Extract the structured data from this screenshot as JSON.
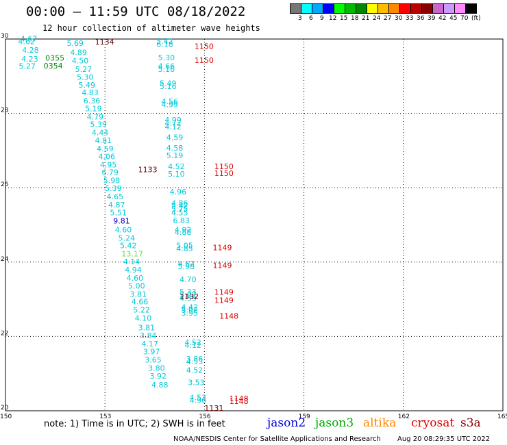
{
  "header": {
    "title": "00:00 — 11:59 UTC 08/18/2022",
    "subtitle": "12 hour collection of altimeter wave heights"
  },
  "color_scale": {
    "colors": [
      "#777777",
      "#00ffff",
      "#00aaff",
      "#0000ff",
      "#00ff00",
      "#00bb00",
      "#008800",
      "#ffff00",
      "#ffbb00",
      "#ff8800",
      "#ff0000",
      "#bb0000",
      "#880000",
      "#cc66cc",
      "#cc99ff",
      "#ff88ff",
      "#000000"
    ],
    "labels": [
      "3",
      "6",
      "9",
      "12",
      "15",
      "18",
      "21",
      "24",
      "27",
      "30",
      "33",
      "36",
      "39",
      "42",
      "45",
      "70",
      "(ft)"
    ]
  },
  "axes": {
    "lat_labels": [
      "30",
      "28",
      "26",
      "24",
      "22",
      "20"
    ],
    "lon_labels": [
      "150",
      "153",
      "156",
      "159",
      "162",
      "165"
    ]
  },
  "observations": {
    "jason3_cyan": [
      {
        "lat": 29.94,
        "lon": 150.45,
        "t": "4.67"
      },
      {
        "lat": 29.86,
        "lon": 150.38,
        "t": "4.62"
      },
      {
        "lat": 29.82,
        "lon": 151.85,
        "t": "5.69"
      },
      {
        "lat": 29.63,
        "lon": 150.5,
        "t": "4.28"
      },
      {
        "lat": 29.57,
        "lon": 151.95,
        "t": "4.89"
      },
      {
        "lat": 29.39,
        "lon": 150.48,
        "t": "4.23"
      },
      {
        "lat": 29.35,
        "lon": 152.0,
        "t": "4.50"
      },
      {
        "lat": 29.2,
        "lon": 150.4,
        "t": "5.27"
      },
      {
        "lat": 29.12,
        "lon": 152.1,
        "t": "5.27"
      },
      {
        "lat": 28.9,
        "lon": 152.15,
        "t": "5.30"
      },
      {
        "lat": 28.69,
        "lon": 152.2,
        "t": "5.49"
      },
      {
        "lat": 28.49,
        "lon": 152.3,
        "t": "4.83"
      },
      {
        "lat": 28.27,
        "lon": 152.35,
        "t": "6.36"
      },
      {
        "lat": 28.06,
        "lon": 152.4,
        "t": "5.19"
      },
      {
        "lat": 27.84,
        "lon": 152.45,
        "t": "4.79"
      },
      {
        "lat": 27.63,
        "lon": 152.55,
        "t": "5.39"
      },
      {
        "lat": 27.41,
        "lon": 152.6,
        "t": "4.44"
      },
      {
        "lat": 27.2,
        "lon": 152.7,
        "t": "4.81"
      },
      {
        "lat": 26.98,
        "lon": 152.75,
        "t": "4.59"
      },
      {
        "lat": 26.77,
        "lon": 152.8,
        "t": "4.06"
      },
      {
        "lat": 26.55,
        "lon": 152.85,
        "t": "4.95"
      },
      {
        "lat": 26.34,
        "lon": 152.9,
        "t": "6.79"
      },
      {
        "lat": 26.12,
        "lon": 152.95,
        "t": "5.98"
      },
      {
        "lat": 25.91,
        "lon": 153.0,
        "t": "5.39"
      },
      {
        "lat": 25.69,
        "lon": 153.05,
        "t": "4.65"
      },
      {
        "lat": 25.47,
        "lon": 153.1,
        "t": "4.87"
      },
      {
        "lat": 25.26,
        "lon": 153.15,
        "t": "5.51"
      },
      {
        "lat": 24.8,
        "lon": 153.3,
        "t": "4.60"
      },
      {
        "lat": 24.58,
        "lon": 153.4,
        "t": "5.24"
      },
      {
        "lat": 24.37,
        "lon": 153.45,
        "t": "5.42"
      },
      {
        "lat": 23.94,
        "lon": 153.55,
        "t": "4.14"
      },
      {
        "lat": 23.72,
        "lon": 153.6,
        "t": "4.94"
      },
      {
        "lat": 23.5,
        "lon": 153.65,
        "t": "4.60"
      },
      {
        "lat": 23.29,
        "lon": 153.7,
        "t": "5.00"
      },
      {
        "lat": 23.07,
        "lon": 153.75,
        "t": "3.81"
      },
      {
        "lat": 22.86,
        "lon": 153.8,
        "t": "4.66"
      },
      {
        "lat": 22.64,
        "lon": 153.85,
        "t": "5.22"
      },
      {
        "lat": 22.42,
        "lon": 153.9,
        "t": "4.10"
      },
      {
        "lat": 22.16,
        "lon": 154.0,
        "t": "3.81"
      },
      {
        "lat": 21.95,
        "lon": 154.05,
        "t": "3.84"
      },
      {
        "lat": 21.73,
        "lon": 154.1,
        "t": "4.17"
      },
      {
        "lat": 21.52,
        "lon": 154.15,
        "t": "3.97"
      },
      {
        "lat": 21.3,
        "lon": 154.2,
        "t": "3.65"
      },
      {
        "lat": 21.08,
        "lon": 154.3,
        "t": "3.80"
      },
      {
        "lat": 20.87,
        "lon": 154.35,
        "t": "3.92"
      },
      {
        "lat": 20.63,
        "lon": 154.4,
        "t": "4.88"
      },
      {
        "lat": 29.87,
        "lon": 154.55,
        "t": "5.42"
      },
      {
        "lat": 29.79,
        "lon": 154.55,
        "t": "6.18"
      },
      {
        "lat": 29.43,
        "lon": 154.6,
        "t": "5.30"
      },
      {
        "lat": 29.2,
        "lon": 154.6,
        "t": "4.66"
      },
      {
        "lat": 29.12,
        "lon": 154.6,
        "t": "5.16"
      },
      {
        "lat": 28.74,
        "lon": 154.65,
        "t": "5.49"
      },
      {
        "lat": 28.66,
        "lon": 154.65,
        "t": "5.16"
      },
      {
        "lat": 28.25,
        "lon": 154.7,
        "t": "4.56"
      },
      {
        "lat": 28.17,
        "lon": 154.7,
        "t": "4.99"
      },
      {
        "lat": 27.75,
        "lon": 154.8,
        "t": "4.99"
      },
      {
        "lat": 27.67,
        "lon": 154.8,
        "t": "4.72"
      },
      {
        "lat": 27.57,
        "lon": 154.8,
        "t": "4.12"
      },
      {
        "lat": 27.28,
        "lon": 154.85,
        "t": "4.59"
      },
      {
        "lat": 27.0,
        "lon": 154.85,
        "t": "4.58"
      },
      {
        "lat": 26.8,
        "lon": 154.85,
        "t": "5.19"
      },
      {
        "lat": 26.5,
        "lon": 154.9,
        "t": "4.52"
      },
      {
        "lat": 26.3,
        "lon": 154.9,
        "t": "5.10"
      },
      {
        "lat": 25.82,
        "lon": 154.95,
        "t": "4.96"
      },
      {
        "lat": 25.52,
        "lon": 155.0,
        "t": "4.86"
      },
      {
        "lat": 25.44,
        "lon": 155.0,
        "t": "5.42"
      },
      {
        "lat": 25.36,
        "lon": 155.0,
        "t": "5.75"
      },
      {
        "lat": 25.26,
        "lon": 155.0,
        "t": "4.55"
      },
      {
        "lat": 25.05,
        "lon": 155.05,
        "t": "6.83"
      },
      {
        "lat": 24.8,
        "lon": 155.1,
        "t": "4.92"
      },
      {
        "lat": 24.73,
        "lon": 155.1,
        "t": "4.88"
      },
      {
        "lat": 24.37,
        "lon": 155.15,
        "t": "5.05"
      },
      {
        "lat": 24.29,
        "lon": 155.15,
        "t": "4.85"
      },
      {
        "lat": 23.89,
        "lon": 155.2,
        "t": "4.62"
      },
      {
        "lat": 23.81,
        "lon": 155.2,
        "t": "5.98"
      },
      {
        "lat": 23.46,
        "lon": 155.25,
        "t": "4.70"
      },
      {
        "lat": 23.13,
        "lon": 155.25,
        "t": "5.33"
      },
      {
        "lat": 23.05,
        "lon": 155.25,
        "t": "5.02"
      },
      {
        "lat": 22.96,
        "lon": 155.25,
        "t": "4.59"
      },
      {
        "lat": 22.72,
        "lon": 155.3,
        "t": "4.42"
      },
      {
        "lat": 22.64,
        "lon": 155.3,
        "t": "5.02"
      },
      {
        "lat": 22.56,
        "lon": 155.3,
        "t": "3.95"
      },
      {
        "lat": 21.77,
        "lon": 155.4,
        "t": "4.52"
      },
      {
        "lat": 21.69,
        "lon": 155.4,
        "t": "4.12"
      },
      {
        "lat": 21.33,
        "lon": 155.45,
        "t": "3.86"
      },
      {
        "lat": 21.25,
        "lon": 155.45,
        "t": "4.53"
      },
      {
        "lat": 21.02,
        "lon": 155.45,
        "t": "4.52"
      },
      {
        "lat": 20.69,
        "lon": 155.5,
        "t": "3.53"
      },
      {
        "lat": 20.29,
        "lon": 155.55,
        "t": "4.53"
      },
      {
        "lat": 20.21,
        "lon": 155.55,
        "t": "4.96"
      }
    ],
    "jason3_green": [
      {
        "lat": 29.42,
        "lon": 151.2,
        "t": "0355"
      },
      {
        "lat": 29.21,
        "lon": 151.15,
        "t": "0354"
      }
    ],
    "jason3_blue": [
      {
        "lat": 25.04,
        "lon": 153.25,
        "t": "9.81"
      }
    ],
    "jason3_lime": [
      {
        "lat": 24.15,
        "lon": 153.5,
        "t": "13.17"
      }
    ],
    "red_times": [
      {
        "lat": 29.73,
        "lon": 155.7,
        "t": "1150"
      },
      {
        "lat": 29.36,
        "lon": 155.7,
        "t": "1150"
      },
      {
        "lat": 26.5,
        "lon": 156.3,
        "t": "1150"
      },
      {
        "lat": 26.32,
        "lon": 156.3,
        "t": "1150"
      },
      {
        "lat": 24.32,
        "lon": 156.25,
        "t": "1149"
      },
      {
        "lat": 23.84,
        "lon": 156.25,
        "t": "1149"
      },
      {
        "lat": 23.12,
        "lon": 156.3,
        "t": "1149"
      },
      {
        "lat": 22.9,
        "lon": 156.3,
        "t": "1149"
      },
      {
        "lat": 22.48,
        "lon": 156.45,
        "t": "1148"
      },
      {
        "lat": 20.26,
        "lon": 156.75,
        "t": "1148"
      },
      {
        "lat": 20.18,
        "lon": 156.75,
        "t": "1148"
      }
    ],
    "darkred_times": [
      {
        "lat": 29.85,
        "lon": 152.7,
        "t": "1134"
      },
      {
        "lat": 26.42,
        "lon": 154.0,
        "t": "1133"
      },
      {
        "lat": 23.0,
        "lon": 155.25,
        "t": "1132"
      },
      {
        "lat": 20.0,
        "lon": 156.0,
        "t": "1131"
      }
    ]
  },
  "note": "note: 1) Time is in UTC; 2) SWH is in feet",
  "legend": [
    {
      "label": "jason2",
      "color": "#0000dd"
    },
    {
      "label": "jason3",
      "color": "#00aa00"
    },
    {
      "label": "altika",
      "color": "#ff8800"
    },
    {
      "label": "cryosat",
      "color": "#dd0000"
    },
    {
      "label": "s3a",
      "color": "#880000"
    }
  ],
  "footer": {
    "credit": "NOAA/NESDIS Center for Satellite Applications and Research",
    "timestamp": "Aug 20 08:29:35 UTC 2022"
  }
}
